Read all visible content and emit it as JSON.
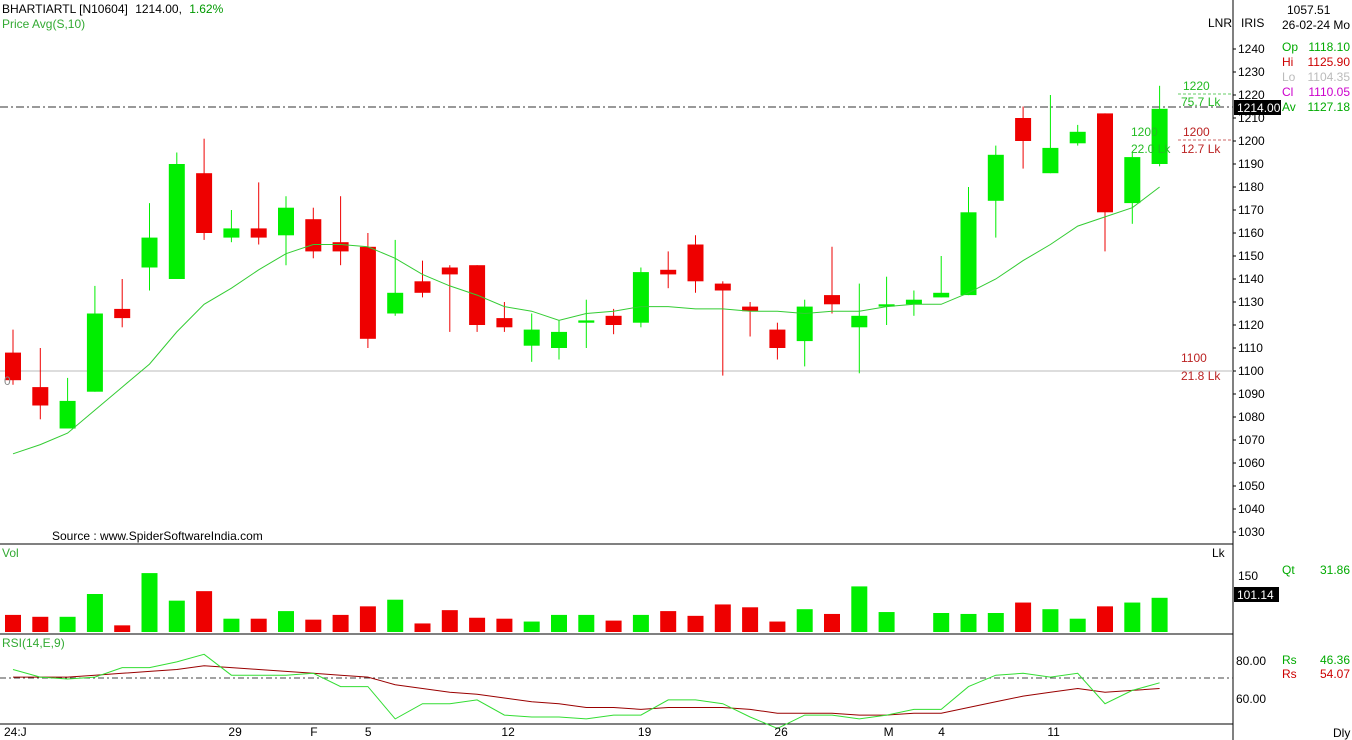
{
  "header": {
    "symbol": "BHARTIARTL [N10604]",
    "price": "1214.00,",
    "change": "1.62%",
    "indicator": "Price Avg(S,10)"
  },
  "source_note": "Source : www.SpiderSoftwareIndia.com",
  "scale_labels": {
    "lnr": "LNR",
    "iris": "IRIS"
  },
  "info_panel": {
    "value": "1057.51",
    "date": "26-02-24 Mo",
    "open_label": "Op",
    "open": "1118.10",
    "high_label": "Hi",
    "high": "1125.90",
    "low_label": "Lo",
    "low": "1104.35",
    "close_label": "Cl",
    "close": "1110.05",
    "avg_label": "Av",
    "avg": "1127.18"
  },
  "price_tag": "1214.00",
  "annotations": {
    "a1220": "1220",
    "a757": "75.7 Lk",
    "a1200g": "1200",
    "a220": "22.0 Lk",
    "a1200r": "1200",
    "a127": "12.7 Lk",
    "a1100": "1100",
    "a218": "21.8 Lk",
    "zero": "0"
  },
  "volume_panel": {
    "label": "Vol",
    "unit": "Lk",
    "qt_label": "Qt",
    "qt_value": "31.86",
    "tick_150": "150",
    "tag": "101.14"
  },
  "rsi_panel": {
    "label": "RSI(14,E,9)",
    "rs1_label": "Rs",
    "rs1_value": "46.36",
    "rs2_label": "Rs",
    "rs2_value": "54.07",
    "tick_80": "80.00",
    "tick_60": "60.00"
  },
  "period": "Dly",
  "colors": {
    "up": "#00ee00",
    "down": "#ee0000",
    "avg_line": "#33cc33",
    "rsi_signal": "#990000"
  },
  "chart_data": {
    "type": "candlestick",
    "ylim": [
      1020,
      1250
    ],
    "y_ticks": [
      1030,
      1040,
      1050,
      1060,
      1070,
      1080,
      1090,
      1100,
      1110,
      1120,
      1130,
      1140,
      1150,
      1160,
      1170,
      1180,
      1190,
      1200,
      1210,
      1220,
      1230,
      1240
    ],
    "x_labels": [
      {
        "i": 0,
        "label": "24:J"
      },
      {
        "i": 8,
        "label": "29"
      },
      {
        "i": 11,
        "label": "F"
      },
      {
        "i": 13,
        "label": "5"
      },
      {
        "i": 18,
        "label": "12"
      },
      {
        "i": 23,
        "label": "19"
      },
      {
        "i": 28,
        "label": "26"
      },
      {
        "i": 32,
        "label": "M"
      },
      {
        "i": 34,
        "label": "4"
      },
      {
        "i": 38,
        "label": "11"
      }
    ],
    "candles": [
      {
        "o": 1108,
        "h": 1118,
        "l": 1094,
        "c": 1096
      },
      {
        "o": 1093,
        "h": 1110,
        "l": 1079,
        "c": 1085
      },
      {
        "o": 1075,
        "h": 1097,
        "l": 1075,
        "c": 1087
      },
      {
        "o": 1091,
        "h": 1137,
        "l": 1091,
        "c": 1125
      },
      {
        "o": 1127,
        "h": 1140,
        "l": 1119,
        "c": 1123
      },
      {
        "o": 1145,
        "h": 1173,
        "l": 1135,
        "c": 1158
      },
      {
        "o": 1140,
        "h": 1195,
        "l": 1140,
        "c": 1190
      },
      {
        "o": 1186,
        "h": 1201,
        "l": 1157,
        "c": 1160
      },
      {
        "o": 1158,
        "h": 1170,
        "l": 1156,
        "c": 1162
      },
      {
        "o": 1162,
        "h": 1182,
        "l": 1155,
        "c": 1158
      },
      {
        "o": 1159,
        "h": 1176,
        "l": 1146,
        "c": 1171
      },
      {
        "o": 1166,
        "h": 1171,
        "l": 1149,
        "c": 1152
      },
      {
        "o": 1156,
        "h": 1176,
        "l": 1146,
        "c": 1152
      },
      {
        "o": 1154,
        "h": 1160,
        "l": 1110,
        "c": 1114
      },
      {
        "o": 1125,
        "h": 1157,
        "l": 1124,
        "c": 1134
      },
      {
        "o": 1139,
        "h": 1148,
        "l": 1132,
        "c": 1134
      },
      {
        "o": 1145,
        "h": 1146,
        "l": 1117,
        "c": 1142
      },
      {
        "o": 1146,
        "h": 1146,
        "l": 1117,
        "c": 1120
      },
      {
        "o": 1123,
        "h": 1130,
        "l": 1117,
        "c": 1119
      },
      {
        "o": 1111,
        "h": 1125,
        "l": 1104,
        "c": 1118
      },
      {
        "o": 1110,
        "h": 1122,
        "l": 1105,
        "c": 1117
      },
      {
        "o": 1121,
        "h": 1131,
        "l": 1110,
        "c": 1122
      },
      {
        "o": 1124,
        "h": 1127,
        "l": 1116,
        "c": 1120
      },
      {
        "o": 1121,
        "h": 1145,
        "l": 1119,
        "c": 1143
      },
      {
        "o": 1144,
        "h": 1152,
        "l": 1136,
        "c": 1142
      },
      {
        "o": 1155,
        "h": 1159,
        "l": 1134,
        "c": 1139
      },
      {
        "o": 1138,
        "h": 1139,
        "l": 1098,
        "c": 1135
      },
      {
        "o": 1128,
        "h": 1130,
        "l": 1115,
        "c": 1126
      },
      {
        "o": 1118,
        "h": 1121,
        "l": 1105,
        "c": 1110
      },
      {
        "o": 1113,
        "h": 1131,
        "l": 1102,
        "c": 1128
      },
      {
        "o": 1133,
        "h": 1154,
        "l": 1125,
        "c": 1129
      },
      {
        "o": 1119,
        "h": 1138,
        "l": 1099,
        "c": 1124
      },
      {
        "o": 1128,
        "h": 1141,
        "l": 1120,
        "c": 1129
      },
      {
        "o": 1129,
        "h": 1135,
        "l": 1124,
        "c": 1131
      },
      {
        "o": 1132,
        "h": 1150,
        "l": 1132,
        "c": 1134
      },
      {
        "o": 1133,
        "h": 1180,
        "l": 1133,
        "c": 1169
      },
      {
        "o": 1174,
        "h": 1198,
        "l": 1158,
        "c": 1194
      },
      {
        "o": 1210,
        "h": 1215,
        "l": 1188,
        "c": 1200
      },
      {
        "o": 1186,
        "h": 1220,
        "l": 1186,
        "c": 1197
      },
      {
        "o": 1199,
        "h": 1207,
        "l": 1198,
        "c": 1204
      },
      {
        "o": 1212,
        "h": 1212,
        "l": 1152,
        "c": 1169
      },
      {
        "o": 1173,
        "h": 1195,
        "l": 1164,
        "c": 1193
      },
      {
        "o": 1190,
        "h": 1224,
        "l": 1189,
        "c": 1214
      }
    ],
    "price_avg": [
      1064,
      1068,
      1073,
      1083,
      1093,
      1103,
      1117,
      1129,
      1136,
      1144,
      1151,
      1155,
      1155,
      1154,
      1149,
      1142,
      1137,
      1133,
      1128,
      1126,
      1122,
      1125,
      1126,
      1128,
      1128,
      1127,
      1127,
      1126,
      1126,
      1125,
      1126,
      1126,
      1128,
      1129,
      1129,
      1134,
      1140,
      1148,
      1155,
      1163,
      1167,
      1171,
      1180
    ],
    "volume": [
      18,
      16,
      16,
      40,
      7,
      62,
      33,
      43,
      14,
      14,
      22,
      13,
      18,
      27,
      34,
      9,
      23,
      15,
      14,
      11,
      18,
      18,
      12,
      18,
      22,
      17,
      29,
      26,
      11,
      24,
      19,
      48,
      21,
      0,
      20,
      19,
      20,
      31,
      24,
      14,
      27,
      31,
      36
    ],
    "rsi": [
      75,
      71,
      70,
      71,
      76,
      76,
      79,
      83,
      72,
      72,
      72,
      73,
      66,
      66,
      49,
      57,
      57,
      59,
      51,
      50,
      50,
      49,
      51,
      51,
      59,
      59,
      57,
      50,
      44,
      51,
      51,
      49,
      51,
      54,
      54,
      66,
      72,
      73,
      71,
      73,
      57,
      64,
      68
    ],
    "rsi_signal": [
      71,
      71,
      71,
      72,
      73,
      74,
      75,
      77,
      76,
      75,
      74,
      73,
      72,
      71,
      67,
      65,
      63,
      62,
      60,
      58,
      57,
      55,
      55,
      54,
      55,
      55,
      55,
      54,
      52,
      52,
      52,
      51,
      51,
      52,
      52,
      55,
      58,
      61,
      63,
      65,
      63,
      64,
      65
    ]
  }
}
